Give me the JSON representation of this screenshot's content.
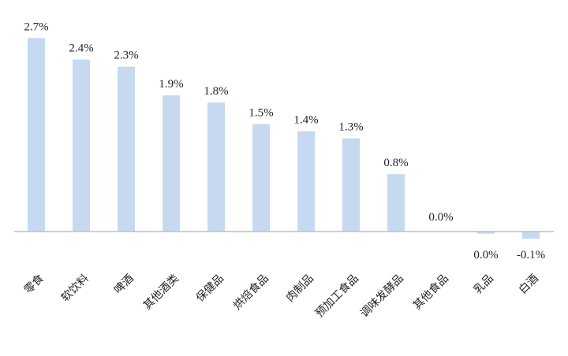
{
  "chart_data": {
    "type": "bar",
    "categories": [
      "零食",
      "软饮料",
      "啤酒",
      "其他酒类",
      "保健品",
      "烘焙食品",
      "肉制品",
      "预加工食品",
      "调味发酵品",
      "其他食品",
      "乳品",
      "白酒"
    ],
    "values": [
      2.7,
      2.4,
      2.3,
      1.9,
      1.8,
      1.5,
      1.4,
      1.3,
      0.8,
      0.0,
      -0.03,
      -0.1
    ],
    "data_labels": [
      "2.7%",
      "2.4%",
      "2.3%",
      "1.9%",
      "1.8%",
      "1.5%",
      "1.4%",
      "1.3%",
      "0.8%",
      "0.0%",
      "0.0%",
      "-0.1%"
    ],
    "title": "",
    "xlabel": "",
    "ylabel": "",
    "ylim": [
      -0.1,
      2.7
    ],
    "grid": false,
    "legend": "none",
    "bar_color": "#c6d9f1",
    "axis_color": "#bfbfbf"
  }
}
